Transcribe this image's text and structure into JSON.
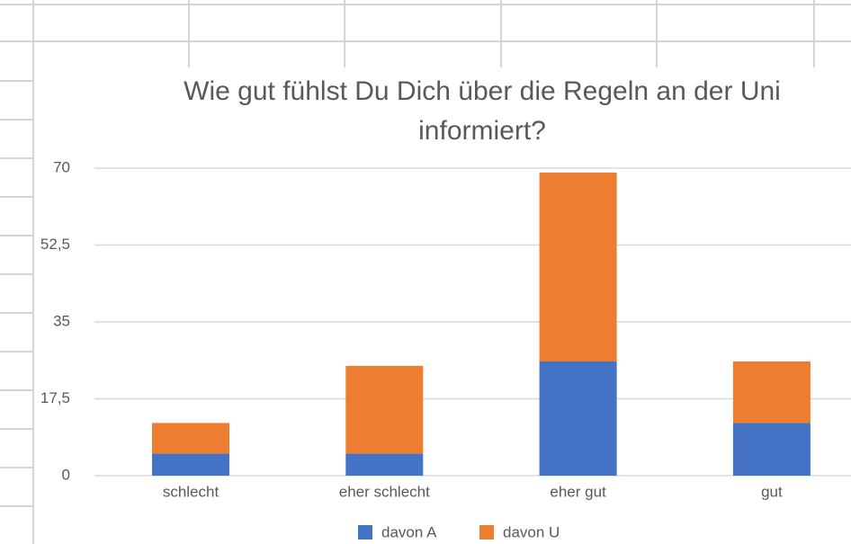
{
  "chart_data": {
    "type": "stacked_bar",
    "title": "Wie gut fühlst Du Dich über die Regeln an der Uni informiert?",
    "categories": [
      "schlecht",
      "eher schlecht",
      "eher gut",
      "gut"
    ],
    "series": [
      {
        "name": "davon A",
        "color": "#4472c4",
        "values": [
          5,
          5,
          26,
          12
        ]
      },
      {
        "name": "davon U",
        "color": "#ed7d31",
        "values": [
          7,
          20,
          43,
          14
        ]
      }
    ],
    "ylim": [
      0,
      70
    ],
    "yticks": [
      0,
      {
        "value": 17.5,
        "label": "17,5"
      },
      35,
      {
        "value": 52.5,
        "label": "52,5"
      },
      70
    ],
    "grid": true,
    "legend": "bottom"
  }
}
